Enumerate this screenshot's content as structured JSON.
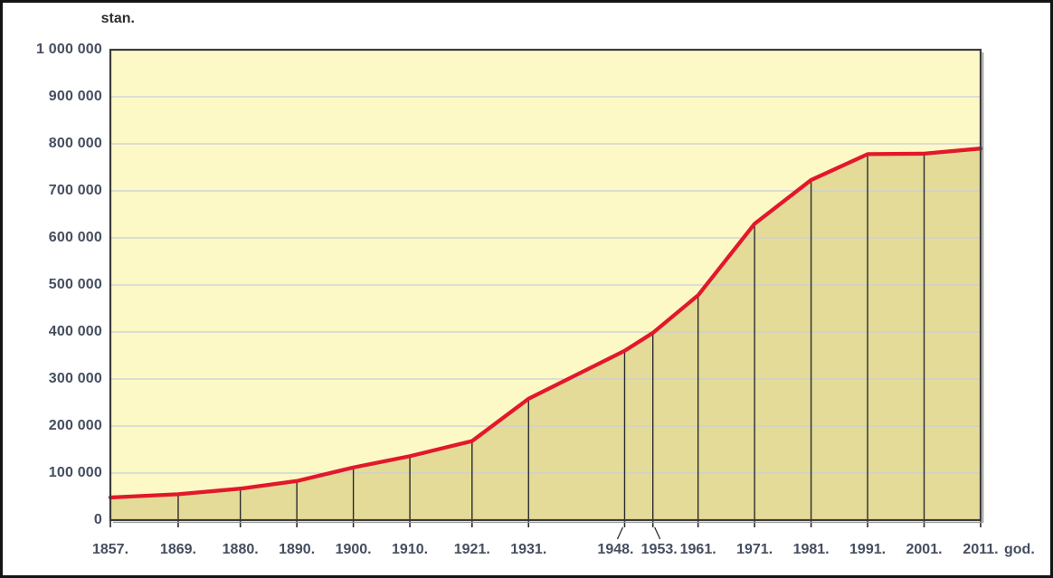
{
  "chart_data": {
    "type": "area",
    "title": "",
    "ylabel": "stan.",
    "xlabel": "god.",
    "x": [
      1857,
      1869,
      1880,
      1890,
      1900,
      1910,
      1921,
      1931,
      1948,
      1953,
      1961,
      1971,
      1981,
      1991,
      2001,
      2011
    ],
    "x_tick_labels": [
      "1857.",
      "1869.",
      "1880.",
      "1890.",
      "1900.",
      "1910.",
      "1921.",
      "1931.",
      "1948.",
      "1953.",
      "1961.",
      "1971.",
      "1981.",
      "1991.",
      "2001.",
      "2011."
    ],
    "values": [
      48000,
      55000,
      67000,
      83000,
      112000,
      136000,
      168000,
      258000,
      360000,
      398000,
      478000,
      630000,
      723000,
      778000,
      779000,
      790000
    ],
    "y_tick_labels": [
      "0",
      "100 000",
      "200 000",
      "300 000",
      "400 000",
      "500 000",
      "600 000",
      "700 000",
      "800 000",
      "900 000",
      "1 000 000"
    ],
    "ylim": [
      0,
      1000000
    ],
    "xlim": [
      1857,
      2011
    ],
    "grid": true,
    "grid_step": 100000,
    "legend": "none",
    "colors": {
      "line": "#e2182b",
      "fill": "#e4db99",
      "plot_bg": "#fcf9c6",
      "grid": "#c9cdd9",
      "dropline": "#2b2b2b",
      "plot_border": "#3c3c3c",
      "plot_shadow": "#9a9a9a",
      "tick_label": "#454e5f",
      "axis_title": "#2e2e2e"
    }
  }
}
